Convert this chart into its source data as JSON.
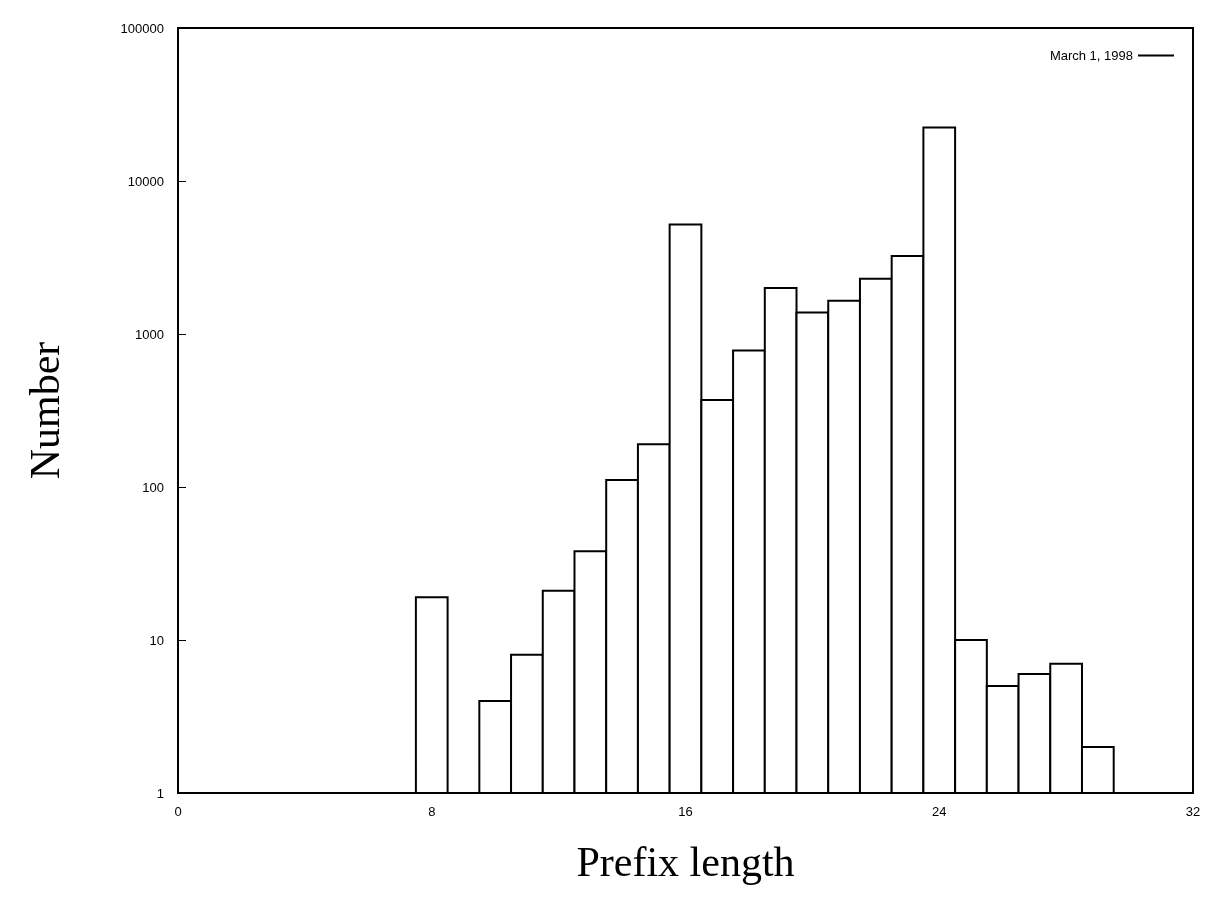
{
  "chart_data": {
    "type": "histogram",
    "xlabel": "Prefix length",
    "ylabel": "Number",
    "bins": [
      7.5,
      8.5,
      9.5,
      10.5,
      11.5,
      12.5,
      13.5,
      14.5,
      15.5,
      16.5,
      17.5,
      18.5,
      19.5,
      20.5,
      21.5,
      22.5,
      23.5,
      24.5,
      25.5,
      26.5,
      27.5,
      28.5,
      29.5
    ],
    "series": [
      {
        "name": "March 1, 1998",
        "color": "#000000",
        "values": [
          19,
          null,
          4,
          8,
          21,
          38,
          111,
          190,
          5200,
          370,
          780,
          2000,
          1380,
          1650,
          2300,
          3230,
          22400,
          10,
          5,
          6,
          7,
          2
        ]
      }
    ],
    "xlim": [
      0,
      32
    ],
    "xticks": [
      0,
      8,
      16,
      24,
      32
    ],
    "ylim": [
      1,
      100000
    ],
    "yticks": [
      1,
      10,
      100,
      1000,
      10000,
      100000
    ],
    "log": "y",
    "grid": false,
    "legend": "top right"
  }
}
